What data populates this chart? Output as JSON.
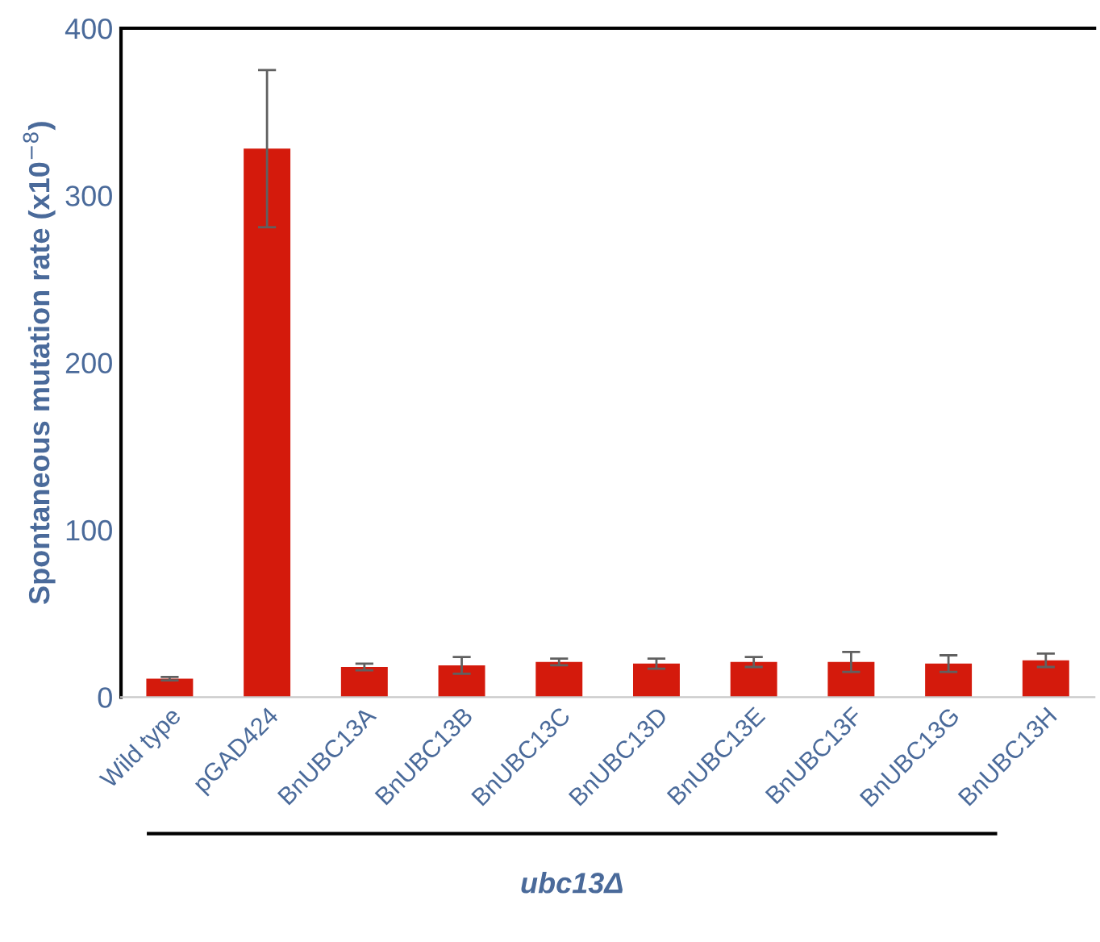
{
  "chart_data": {
    "type": "bar",
    "ylabel": "Spontaneous mutation rate (x10$^{−8}$)",
    "categories": [
      "Wild type",
      "pGAD424",
      "BnUBC13A",
      "BnUBC13B",
      "BnUBC13C",
      "BnUBC13D",
      "BnUBC13E",
      "BnUBC13F",
      "BnUBC13G",
      "BnUBC13H"
    ],
    "values": [
      11,
      328,
      18,
      19,
      21,
      20,
      21,
      21,
      20,
      22
    ],
    "errors": [
      1,
      47,
      2,
      5,
      2,
      3,
      3,
      6,
      5,
      4
    ],
    "color": "#d41a0c",
    "ylim": [
      0,
      400
    ],
    "yticks": [
      0,
      100,
      200,
      300,
      400
    ],
    "grid": false,
    "legend": false,
    "annotations": [
      "ubc13Δ"
    ]
  }
}
